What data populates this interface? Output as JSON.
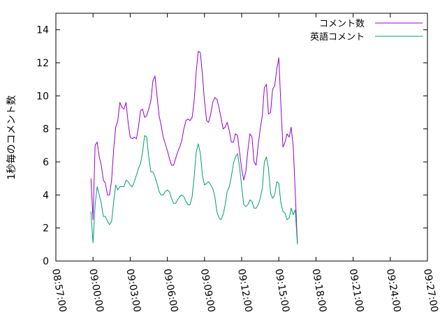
{
  "chart_data": {
    "type": "line",
    "title": "",
    "xlabel": "",
    "ylabel": "1秒毎のコメント数",
    "xlim": [
      "08:57:00",
      "09:27:00"
    ],
    "ylim": [
      0,
      15
    ],
    "x_ticks": [
      "08:57:00",
      "09:00:00",
      "09:03:00",
      "09:06:00",
      "09:09:00",
      "09:12:00",
      "09:15:00",
      "09:18:00",
      "09:21:00",
      "09:24:00",
      "09:27:00"
    ],
    "y_ticks": [
      0,
      2,
      4,
      6,
      8,
      10,
      12,
      14
    ],
    "grid": false,
    "legend_position": "top-right",
    "x_start": "08:59:50",
    "x_step_seconds": 10,
    "series": [
      {
        "name": "コメント数",
        "color": "#9400d3",
        "values": [
          5.0,
          2.5,
          7.0,
          7.2,
          6.3,
          5.8,
          4.9,
          4.7,
          4.0,
          4.0,
          4.9,
          6.8,
          8.1,
          8.5,
          9.6,
          9.3,
          9.2,
          9.6,
          8.4,
          7.5,
          7.4,
          7.5,
          7.4,
          8.1,
          9.1,
          9.2,
          8.7,
          8.8,
          9.2,
          9.7,
          10.9,
          11.2,
          10.0,
          8.8,
          8.2,
          7.5,
          7.1,
          6.7,
          6.2,
          5.8,
          5.8,
          6.2,
          6.6,
          6.9,
          7.3,
          8.0,
          8.5,
          8.6,
          8.5,
          8.7,
          9.7,
          11.5,
          12.7,
          12.6,
          11.3,
          9.7,
          8.5,
          8.4,
          8.9,
          9.6,
          9.9,
          9.8,
          9.3,
          8.7,
          8.0,
          8.1,
          8.4,
          7.9,
          7.2,
          7.2,
          7.7,
          7.6,
          6.6,
          5.6,
          4.9,
          5.4,
          6.7,
          7.7,
          7.5,
          6.0,
          5.8,
          7.0,
          8.0,
          8.8,
          10.5,
          10.7,
          8.9,
          9.0,
          10.4,
          10.6,
          11.6,
          12.3,
          9.4,
          6.9,
          7.2,
          7.7,
          7.5,
          8.1,
          6.9,
          4.1,
          1.1
        ]
      },
      {
        "name": "英語コメント",
        "color": "#009e73",
        "values": [
          3.0,
          1.1,
          3.4,
          4.5,
          4.0,
          3.5,
          2.7,
          2.7,
          2.4,
          2.2,
          2.4,
          3.6,
          4.6,
          4.3,
          4.5,
          4.5,
          4.5,
          4.9,
          4.8,
          4.6,
          4.5,
          4.8,
          5.2,
          5.6,
          5.9,
          6.6,
          7.6,
          7.5,
          6.3,
          5.4,
          5.4,
          5.1,
          4.7,
          4.2,
          4.0,
          4.0,
          4.2,
          4.3,
          4.2,
          3.8,
          3.5,
          3.5,
          3.7,
          3.9,
          4.0,
          3.9,
          3.6,
          3.4,
          3.4,
          3.9,
          5.1,
          6.6,
          7.1,
          6.5,
          5.2,
          4.6,
          4.7,
          4.8,
          4.6,
          4.4,
          3.9,
          3.0,
          2.6,
          2.5,
          2.8,
          3.4,
          4.2,
          4.5,
          5.1,
          5.9,
          6.3,
          6.5,
          5.7,
          4.5,
          3.4,
          3.3,
          3.4,
          3.7,
          3.6,
          3.2,
          3.2,
          3.4,
          3.8,
          4.4,
          6.0,
          6.3,
          5.6,
          4.1,
          3.8,
          4.0,
          4.8,
          4.7,
          3.5,
          3.0,
          2.9,
          2.5,
          2.6,
          3.2,
          2.8,
          3.1,
          1.0
        ]
      }
    ]
  }
}
